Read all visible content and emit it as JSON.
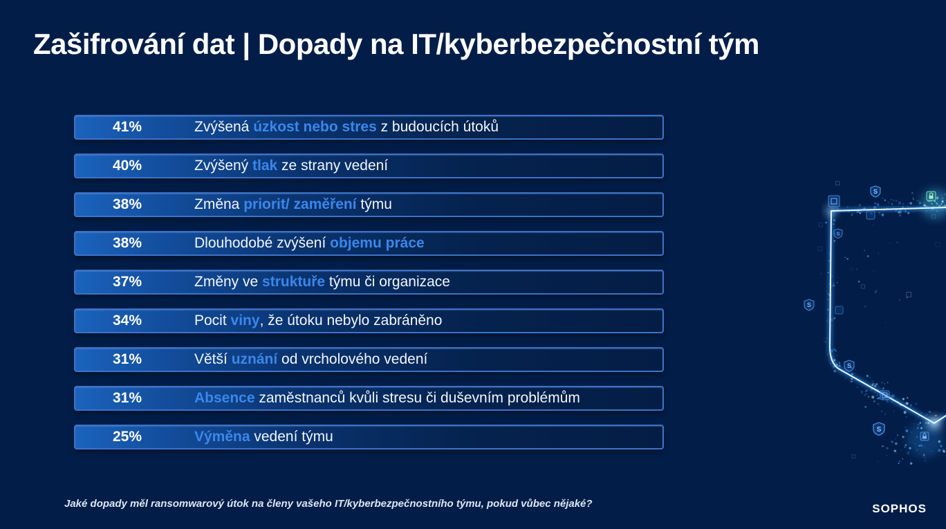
{
  "title": "Zašifrování dat | Dopady na IT/kyberbezpečnostní tým",
  "chart_data": {
    "type": "bar",
    "orientation": "horizontal-list",
    "title": "Zašifrování dat | Dopady na IT/kyberbezpečnostní tým",
    "unit": "%",
    "categories": [
      "Zvýšená úzkost nebo stres z budoucích útoků",
      "Zvýšený tlak ze strany vedení",
      "Změna priorit/ zaměření týmu",
      "Dlouhodobé zvýšení objemu práce",
      "Změny ve struktuře týmu či organizace",
      "Pocit viny, že útoku nebylo zabráněno",
      "Větší uznání od vrcholového vedení",
      "Absence zaměstnanců kvůli stresu či duševním problémům",
      "Výměna vedení týmu"
    ],
    "values": [
      41,
      40,
      38,
      38,
      37,
      34,
      31,
      31,
      25
    ],
    "source_question": "Jaké dopady měl ransomwarový útok na členy vašeho IT/kyberbezpečnostního týmu, pokud vůbec nějaké?"
  },
  "rows": [
    {
      "value": "41%",
      "segments": [
        {
          "text": "Zvýšená ",
          "highlight": false
        },
        {
          "text": "úzkost nebo stres",
          "highlight": true
        },
        {
          "text": " z budoucích útoků",
          "highlight": false
        }
      ]
    },
    {
      "value": "40%",
      "segments": [
        {
          "text": "Zvýšený ",
          "highlight": false
        },
        {
          "text": "tlak",
          "highlight": true
        },
        {
          "text": " ze strany vedení",
          "highlight": false
        }
      ]
    },
    {
      "value": "38%",
      "segments": [
        {
          "text": "Změna ",
          "highlight": false
        },
        {
          "text": "priorit/ zaměření",
          "highlight": true
        },
        {
          "text": " týmu",
          "highlight": false
        }
      ]
    },
    {
      "value": "38%",
      "segments": [
        {
          "text": "Dlouhodobé zvýšení ",
          "highlight": false
        },
        {
          "text": "objemu práce",
          "highlight": true
        }
      ]
    },
    {
      "value": "37%",
      "segments": [
        {
          "text": "Změny ve ",
          "highlight": false
        },
        {
          "text": "struktuře",
          "highlight": true
        },
        {
          "text": " týmu či organizace",
          "highlight": false
        }
      ]
    },
    {
      "value": "34%",
      "segments": [
        {
          "text": "Pocit ",
          "highlight": false
        },
        {
          "text": "viny",
          "highlight": true
        },
        {
          "text": ", že útoku nebylo zabráněno",
          "highlight": false
        }
      ]
    },
    {
      "value": "31%",
      "segments": [
        {
          "text": "Větší ",
          "highlight": false
        },
        {
          "text": "uznání",
          "highlight": true
        },
        {
          "text": " od vrcholového vedení",
          "highlight": false
        }
      ]
    },
    {
      "value": "31%",
      "segments": [
        {
          "text": "Absence",
          "highlight": true
        },
        {
          "text": " zaměstnanců kvůli stresu či duševním problémům",
          "highlight": false
        }
      ]
    },
    {
      "value": "25%",
      "segments": [
        {
          "text": "Výměna",
          "highlight": true
        },
        {
          "text": " vedení týmu",
          "highlight": false
        }
      ]
    }
  ],
  "footer": {
    "question": "Jaké dopady měl ransomwarový útok na členy vašeho IT/kyberbezpečnostního týmu, pokud vůbec nějaké?"
  },
  "brand": {
    "logo_text": "SOPHOS"
  },
  "graphic": {
    "name": "glowing-shield-particles",
    "badge_letter": "S"
  },
  "colors": {
    "background": "#021e48",
    "row_border": "#3d72c8",
    "row_gradient_start": "#1b63bc",
    "row_gradient_end": "#041d45",
    "highlight_text": "#3b87ea",
    "body_text": "#f2f7fd",
    "glow_line": "#eaf6ff",
    "glow_halo": "#2f8fe8",
    "teal_accent": "#46e0c8"
  }
}
